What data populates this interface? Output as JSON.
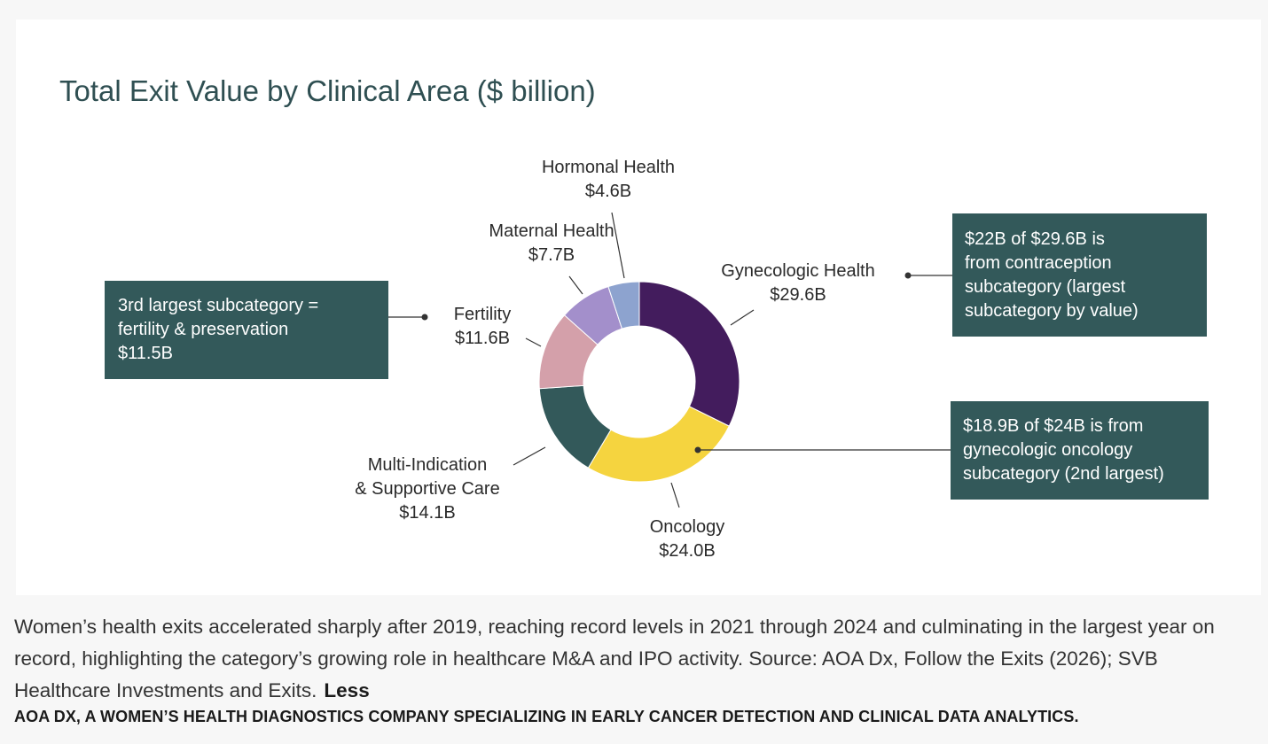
{
  "chart_data": {
    "type": "pie",
    "donut": true,
    "title": "Total Exit Value by Clinical Area ($ billion)",
    "unit": "$ billion",
    "slices": [
      {
        "name": "Gynecologic Health",
        "value": 29.6,
        "label": "$29.6B",
        "color": "#431c5d"
      },
      {
        "name": "Oncology",
        "value": 24.0,
        "label": "$24.0B",
        "color": "#f5d43f"
      },
      {
        "name": "Multi-Indication & Supportive Care",
        "value": 14.1,
        "label": "$14.1B",
        "color": "#33595a"
      },
      {
        "name": "Fertility",
        "value": 11.6,
        "label": "$11.6B",
        "color": "#d4a0aa"
      },
      {
        "name": "Maternal Health",
        "value": 7.7,
        "label": "$7.7B",
        "color": "#a38fcb"
      },
      {
        "name": "Hormonal Health",
        "value": 4.6,
        "label": "$4.6B",
        "color": "#8da3cf"
      }
    ],
    "label_lines": {
      "multi_indication_line1": "Multi-Indication",
      "multi_indication_line2": "& Supportive Care"
    },
    "annotations": {
      "gynecologic": [
        "$22B of $29.6B is",
        "from contraception",
        "subcategory (largest",
        "subcategory by value)"
      ],
      "oncology": [
        "$18.9B of $24B is from",
        "gynecologic oncology",
        "subcategory (2nd largest)"
      ],
      "fertility": [
        "3rd largest subcategory =",
        "fertility & preservation",
        "$11.5B"
      ]
    }
  },
  "caption": {
    "text": "Women’s health exits accelerated sharply after 2019, reaching record levels in 2021 through 2024 and culminating in the largest year on record, highlighting the category’s growing role in healthcare M&A and IPO activity. Source: AOA Dx, Follow the Exits (2026); SVB Healthcare Investments and Exits.",
    "toggle_label": "Less"
  },
  "credit": "AOA Dx, a women’s health diagnostics company specializing in early cancer detection and clinical data analytics."
}
